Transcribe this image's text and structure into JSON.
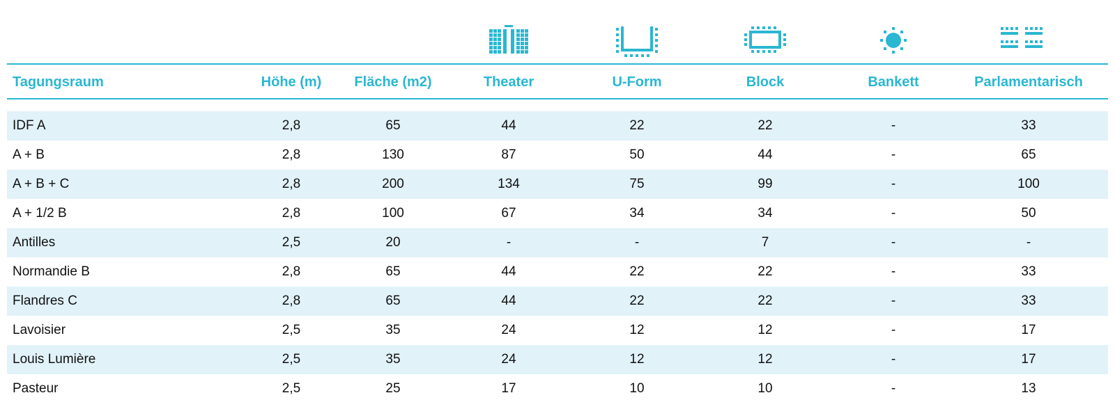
{
  "colors": {
    "accent": "#2ab7d1",
    "row_shade": "#e1f2f9",
    "text": "#111111"
  },
  "icons": {
    "theater": "theater-seating-icon",
    "uform": "u-form-seating-icon",
    "block": "block-seating-icon",
    "bankett": "banquet-seating-icon",
    "parlamentarisch": "parliamentary-seating-icon"
  },
  "table": {
    "headers": {
      "room": "Tagungsraum",
      "height": "Höhe (m)",
      "area": "Fläche (m2)",
      "theater": "Theater",
      "uform": "U-Form",
      "block": "Block",
      "bankett": "Bankett",
      "parlamentarisch": "Parlamentarisch"
    },
    "rows": [
      {
        "room": "IDF A",
        "height": "2,8",
        "area": "65",
        "theater": "44",
        "uform": "22",
        "block": "22",
        "bankett": "-",
        "parlamentarisch": "33"
      },
      {
        "room": "A + B",
        "height": "2,8",
        "area": "130",
        "theater": "87",
        "uform": "50",
        "block": "44",
        "bankett": "-",
        "parlamentarisch": "65"
      },
      {
        "room": "A + B + C",
        "height": "2,8",
        "area": "200",
        "theater": "134",
        "uform": "75",
        "block": "99",
        "bankett": "-",
        "parlamentarisch": "100"
      },
      {
        "room": "A + 1/2 B",
        "height": "2,8",
        "area": "100",
        "theater": "67",
        "uform": "34",
        "block": "34",
        "bankett": "-",
        "parlamentarisch": "50"
      },
      {
        "room": "Antilles",
        "height": "2,5",
        "area": "20",
        "theater": "-",
        "uform": "-",
        "block": "7",
        "bankett": "-",
        "parlamentarisch": "-"
      },
      {
        "room": "Normandie B",
        "height": "2,8",
        "area": "65",
        "theater": "44",
        "uform": "22",
        "block": "22",
        "bankett": "-",
        "parlamentarisch": "33"
      },
      {
        "room": "Flandres C",
        "height": "2,8",
        "area": "65",
        "theater": "44",
        "uform": "22",
        "block": "22",
        "bankett": "-",
        "parlamentarisch": "33"
      },
      {
        "room": "Lavoisier",
        "height": "2,5",
        "area": "35",
        "theater": "24",
        "uform": "12",
        "block": "12",
        "bankett": "-",
        "parlamentarisch": "17"
      },
      {
        "room": "Louis Lumière",
        "height": "2,5",
        "area": "35",
        "theater": "24",
        "uform": "12",
        "block": "12",
        "bankett": "-",
        "parlamentarisch": "17"
      },
      {
        "room": "Pasteur",
        "height": "2,5",
        "area": "25",
        "theater": "17",
        "uform": "10",
        "block": "10",
        "bankett": "-",
        "parlamentarisch": "13"
      }
    ]
  }
}
